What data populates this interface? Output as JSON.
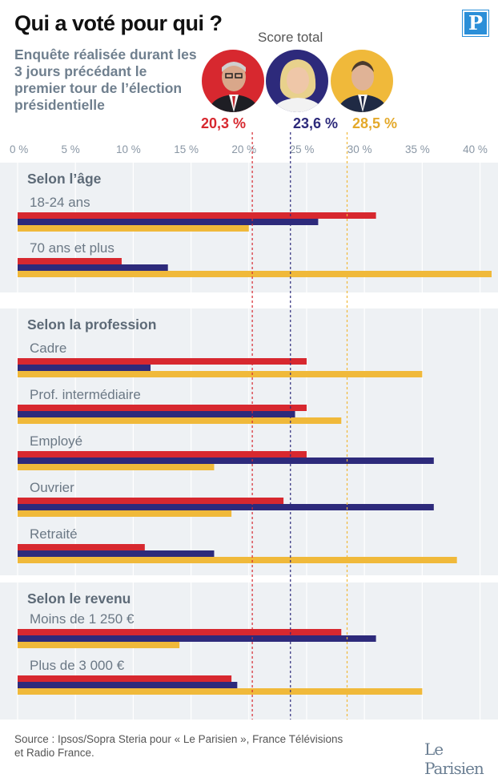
{
  "title": "Qui a voté pour qui ?",
  "subtitle": "Enquête réalisée durant les 3 jours précédant le premier tour de l’élection présidentielle",
  "score_label": "Score total",
  "source": "Source : Ipsos/Sopra Steria pour « Le Parisien », France Télévisions et Radio France.",
  "brand": "Le Parisien",
  "logo_letter": "P",
  "candidates": [
    {
      "key": "melenchon",
      "score": "20,3 %",
      "color": "#d7282f",
      "portrait_bg": "#d7282f"
    },
    {
      "key": "lepen",
      "score": "23,6 %",
      "color": "#2d2a7b",
      "portrait_bg": "#2d2a7b"
    },
    {
      "key": "macron",
      "score": "28,5 %",
      "color": "#f0b93a",
      "portrait_bg": "#f0b93a"
    }
  ],
  "chart_data": {
    "type": "bar",
    "orientation": "horizontal",
    "xlim": [
      0,
      41
    ],
    "xticks": [
      0,
      5,
      10,
      15,
      20,
      25,
      30,
      35,
      40
    ],
    "xtick_labels": [
      "0 %",
      "5 %",
      "10 %",
      "15 %",
      "20 %",
      "25 %",
      "30 %",
      "35 %",
      "40 %"
    ],
    "reference_lines": [
      20.3,
      23.6,
      28.5
    ],
    "series_colors": [
      "#d7282f",
      "#2d2a7b",
      "#f0b93a"
    ],
    "groups": [
      {
        "title": "Selon l’âge",
        "categories": [
          {
            "label": "18-24 ans",
            "values": [
              31,
              26,
              20
            ]
          },
          {
            "label": "70 ans et plus",
            "values": [
              9,
              13,
              41
            ]
          }
        ]
      },
      {
        "title": "Selon la profession",
        "categories": [
          {
            "label": "Cadre",
            "values": [
              25,
              11.5,
              35
            ]
          },
          {
            "label": "Prof. intermédiaire",
            "values": [
              25,
              24,
              28
            ]
          },
          {
            "label": "Employé",
            "values": [
              25,
              36,
              17
            ]
          },
          {
            "label": "Ouvrier",
            "values": [
              23,
              36,
              18.5
            ]
          },
          {
            "label": "Retraité",
            "values": [
              11,
              17,
              38
            ]
          }
        ]
      },
      {
        "title": "Selon le revenu",
        "categories": [
          {
            "label": "Moins de 1 250 €",
            "values": [
              28,
              31,
              14
            ]
          },
          {
            "label": "Plus de 3 000 €",
            "values": [
              18.5,
              19,
              35
            ]
          }
        ]
      }
    ]
  }
}
